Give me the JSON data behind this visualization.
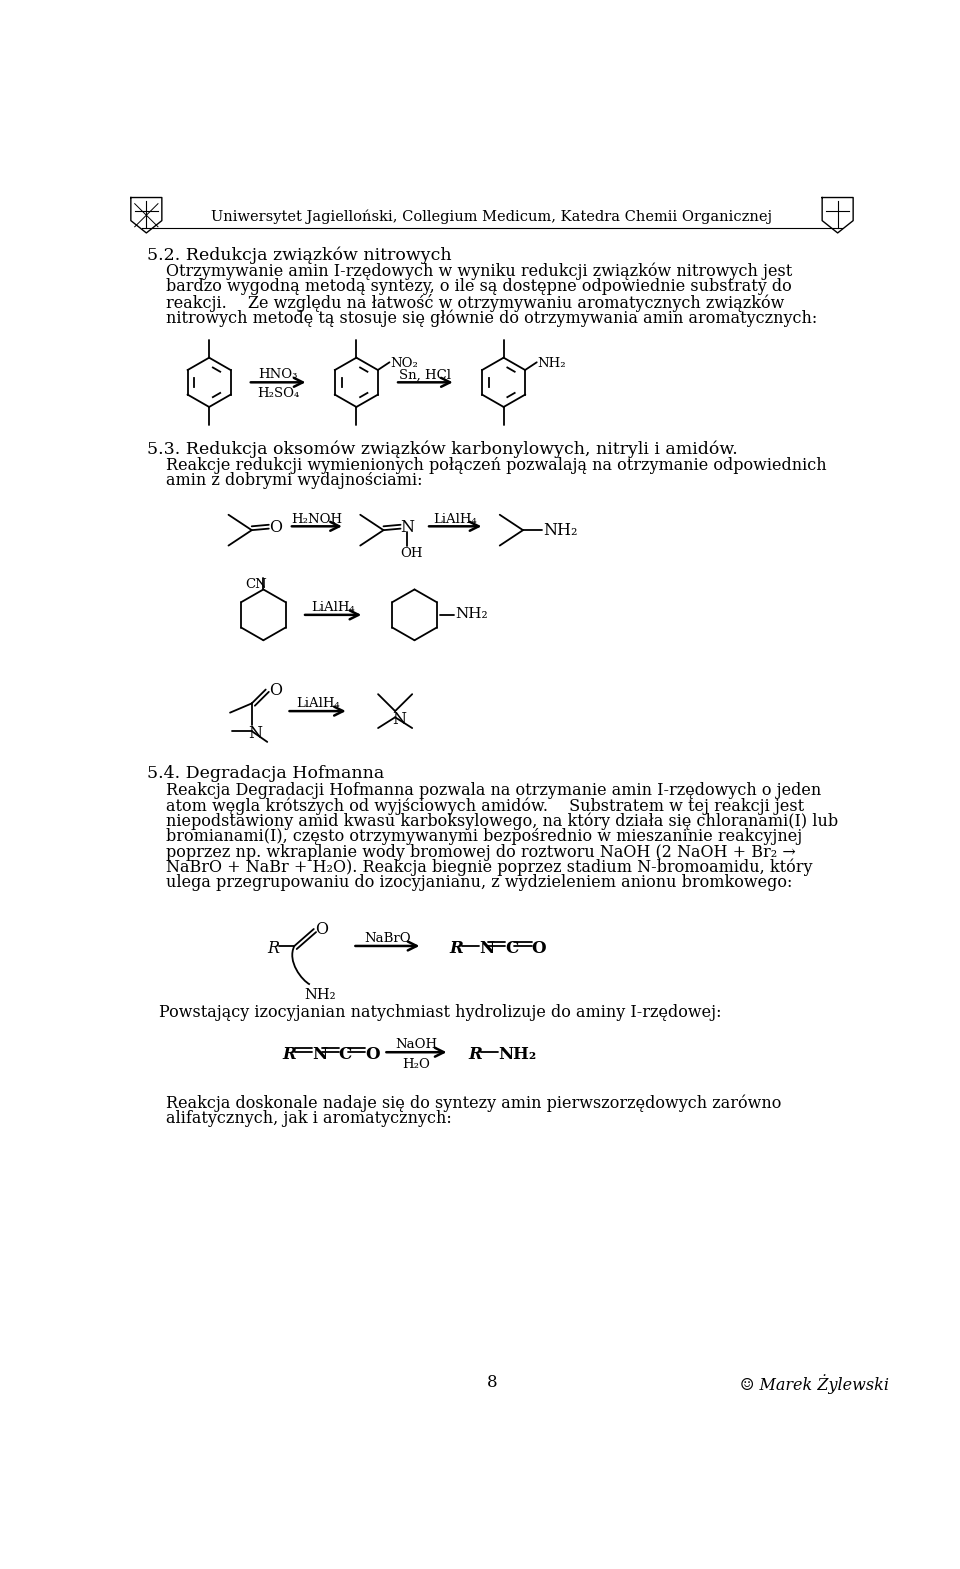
{
  "page_number": "8",
  "header_text": "Uniwersytet Jagielloński, Collegium Medicum, Katedra Chemii Organicznej",
  "bg_color": "#ffffff",
  "section_52_title": "5.2. Redukcja związków nitrowych",
  "section_53_title": "5.3. Redukcja oksomów związków karbonylowych, nitryli i amidów.",
  "section_54_title": "5.4. Degradacja Hofmanna",
  "lines52": [
    "Otrzymywanie amin I-rzędowych w wyniku redukcji związków nitrowych jest",
    "bardzo wygodną metodą syntezy, o ile są dostępne odpowiednie substraty do",
    "reakcji.  Ze względu na łatwość w otrzymywaniu aromatycznych związków",
    "nitrowych metodę tą stosuje się głównie do otrzymywania amin aromatycznych:"
  ],
  "lines53": [
    "Reakcje redukcji wymienionych połączeń pozwalają na otrzymanie odpowiednich",
    "amin z dobrymi wydajnościami:"
  ],
  "lines54a": [
    "Reakcja Degradacji Hofmanna pozwala na otrzymanie amin I-rzędowych o jeden",
    "atom węgla krótszych od wyjściowych amidów.  Substratem w tej reakcji jest",
    "niepodstawiony amid kwasu karboksylowego, na który działa się chloranami(I) lub",
    "bromianami(I), często otrzymywanymi bezpośrednio w mieszaninie reakcyjnej",
    "poprzez np. wkraplanie wody bromowej do roztworu NaOH (2 NaOH + Br₂ →",
    "NaBrO + NaBr + H₂O). Reakcja biegnie poprzez stadium N-bromoamidu, który",
    "ulega przegrupowaniu do izocyjanianu, z wydzieleniem anionu bromkowego:"
  ],
  "line54b": "Powstający izocyjanian natychmiast hydrolizuje do aminy I-rzędowej:",
  "lines54c": [
    "Reakcja doskonale nadaje się do syntezy amin pierwszorzędowych zarówno",
    "alifatycznych, jak i aromatycznych:"
  ],
  "footer_page": "8",
  "footer_author": "☺ Marek Żylewski"
}
